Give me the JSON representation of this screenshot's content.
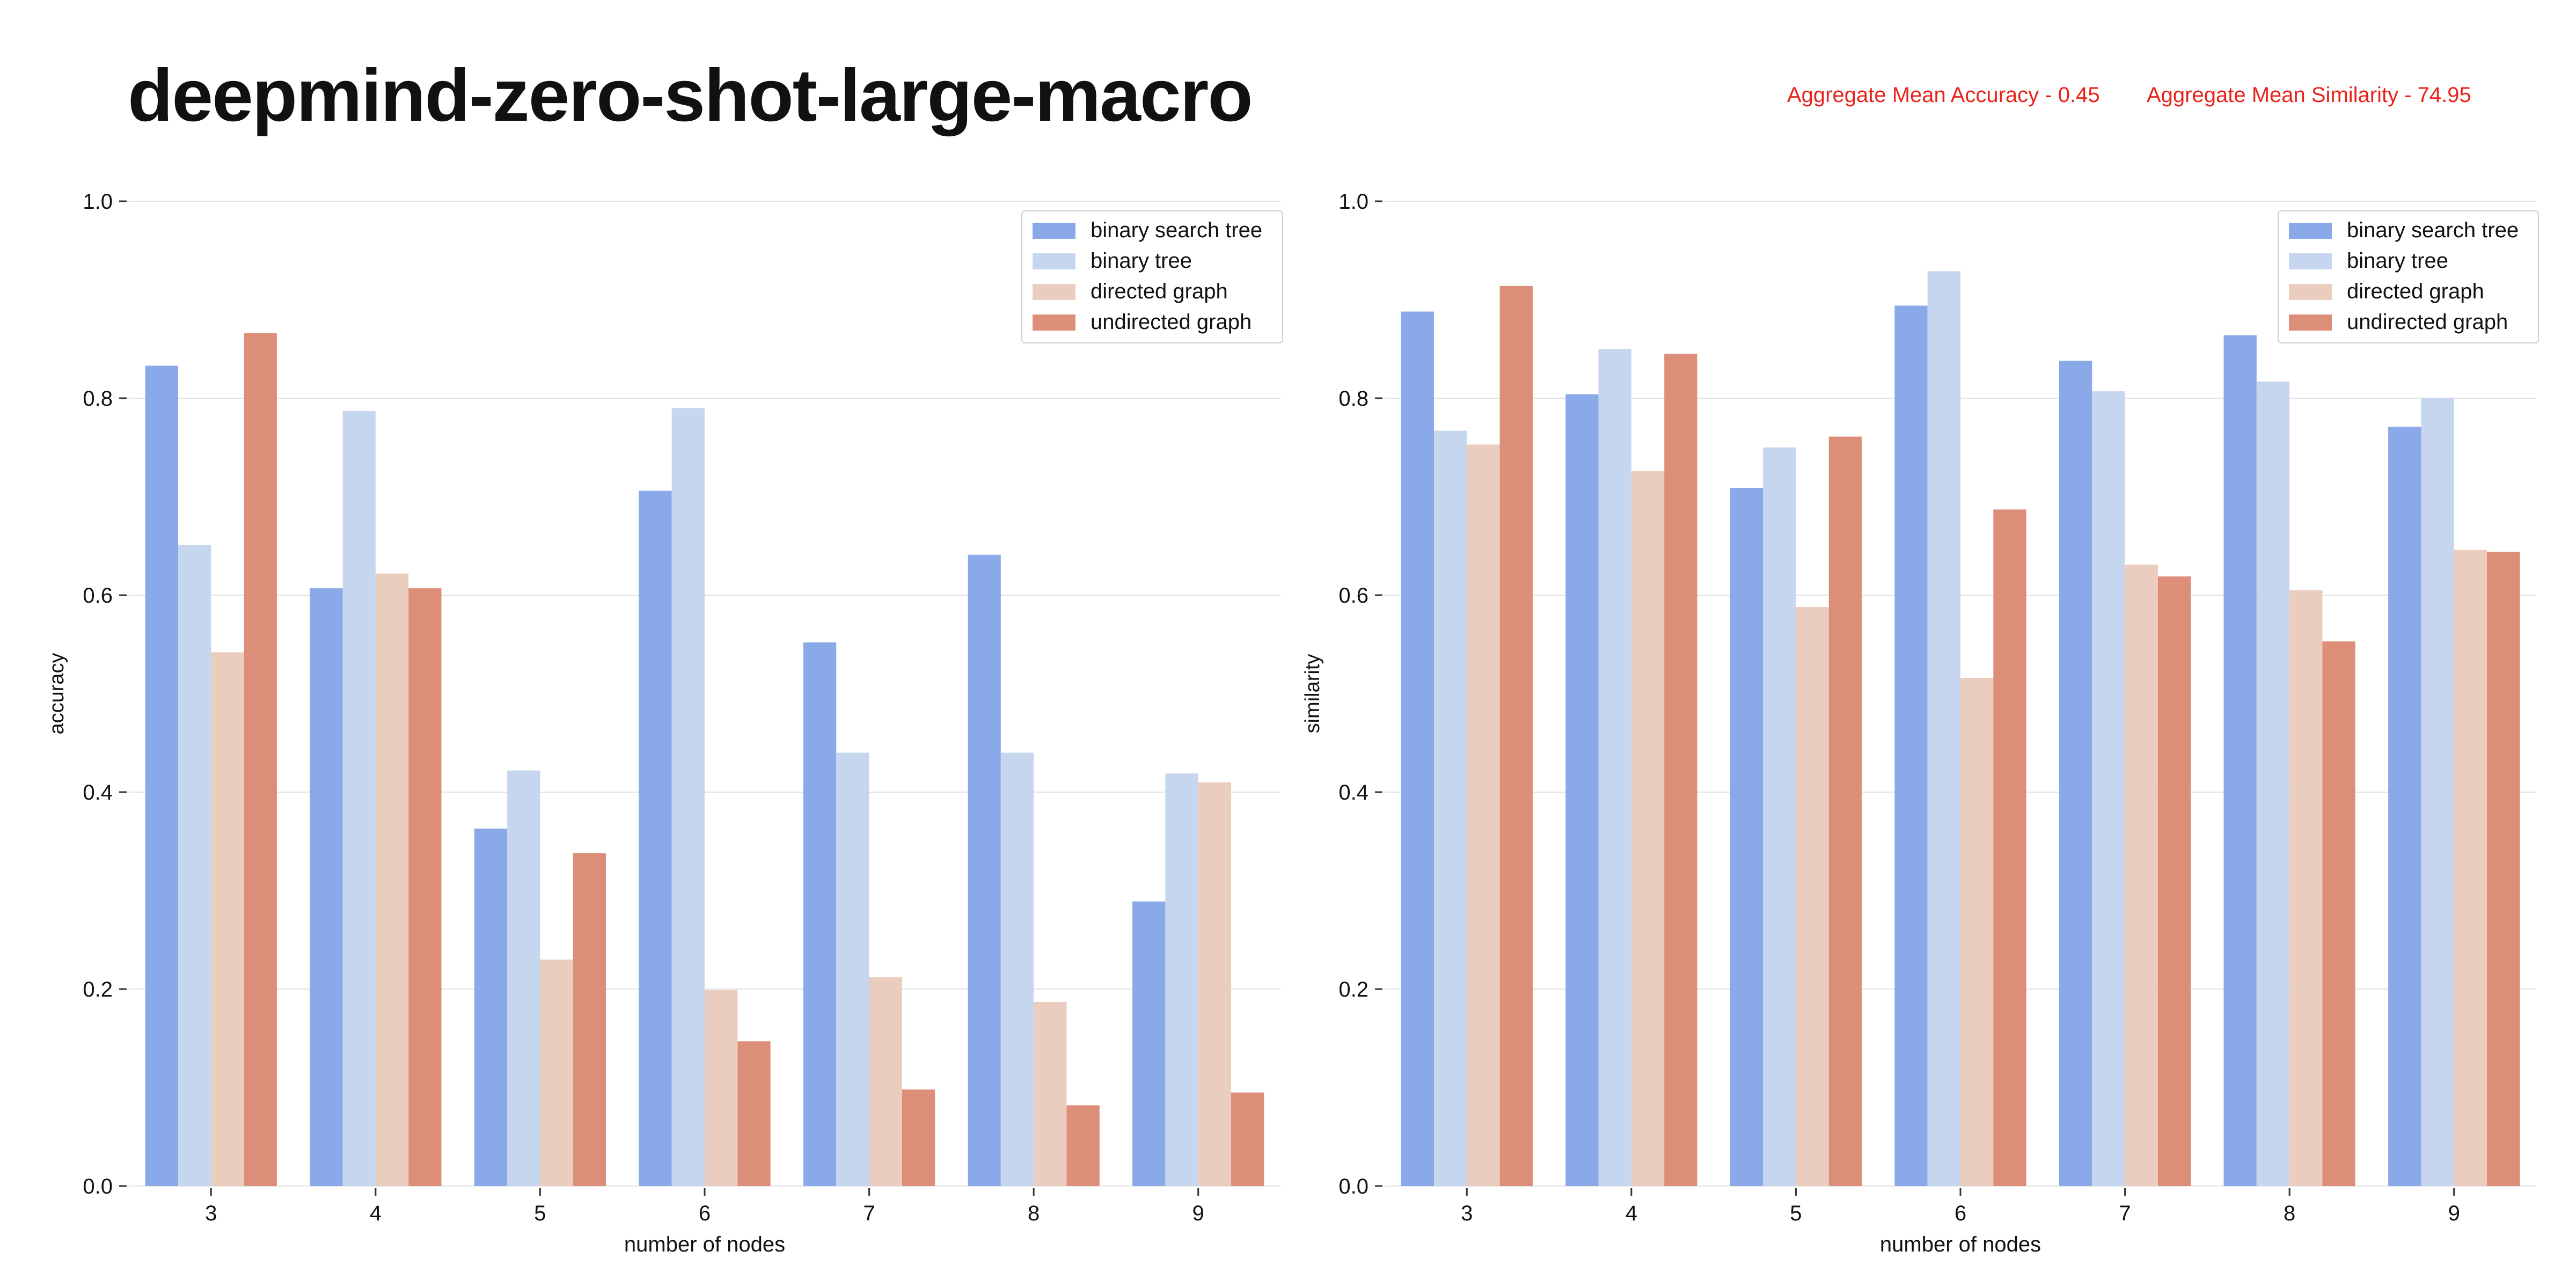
{
  "page": {
    "title": "deepmind-zero-shot-large-macro",
    "aggregate_accuracy": "Aggregate Mean Accuracy - 0.45",
    "aggregate_similarity": "Aggregate Mean Similarity - 74.95"
  },
  "colors": {
    "binary search tree": "#8aa9e8",
    "binary tree": "#c7d6ef",
    "directed graph": "#ebcdc0",
    "undirected graph": "#dd8e78"
  },
  "chart_data": [
    {
      "type": "bar",
      "xlabel": "number of nodes",
      "ylabel": "accuracy",
      "ylim": [
        0,
        1.0
      ],
      "yticks": [
        "0.0",
        "0.2",
        "0.4",
        "0.6",
        "0.8",
        "1.0"
      ],
      "grid": true,
      "legend": "top-right",
      "categories": [
        "3",
        "4",
        "5",
        "6",
        "7",
        "8",
        "9"
      ],
      "series": [
        {
          "name": "binary search tree",
          "values": [
            0.833,
            0.607,
            0.363,
            0.706,
            0.552,
            0.641,
            0.289
          ]
        },
        {
          "name": "binary tree",
          "values": [
            0.651,
            0.787,
            0.422,
            0.79,
            0.44,
            0.44,
            0.419
          ]
        },
        {
          "name": "directed graph",
          "values": [
            0.542,
            0.622,
            0.23,
            0.199,
            0.212,
            0.187,
            0.41
          ]
        },
        {
          "name": "undirected graph",
          "values": [
            0.866,
            0.607,
            0.338,
            0.147,
            0.098,
            0.082,
            0.095
          ]
        }
      ]
    },
    {
      "type": "bar",
      "xlabel": "number of nodes",
      "ylabel": "similarity",
      "ylim": [
        0,
        1.0
      ],
      "yticks": [
        "0.0",
        "0.2",
        "0.4",
        "0.6",
        "0.8",
        "1.0"
      ],
      "grid": true,
      "legend": "top-right",
      "categories": [
        "3",
        "4",
        "5",
        "6",
        "7",
        "8",
        "9"
      ],
      "series": [
        {
          "name": "binary search tree",
          "values": [
            0.888,
            0.804,
            0.709,
            0.894,
            0.838,
            0.864,
            0.771
          ]
        },
        {
          "name": "binary tree",
          "values": [
            0.767,
            0.85,
            0.75,
            0.929,
            0.807,
            0.817,
            0.8
          ]
        },
        {
          "name": "directed graph",
          "values": [
            0.753,
            0.726,
            0.588,
            0.516,
            0.631,
            0.605,
            0.646
          ]
        },
        {
          "name": "undirected graph",
          "values": [
            0.914,
            0.845,
            0.761,
            0.687,
            0.619,
            0.553,
            0.644
          ]
        }
      ]
    }
  ]
}
